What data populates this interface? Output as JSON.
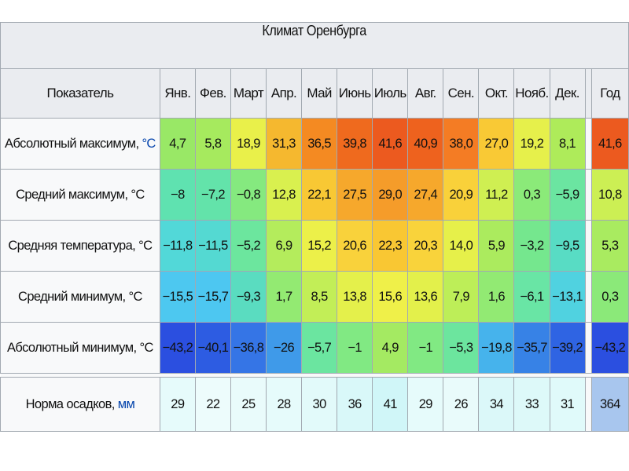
{
  "table": {
    "caption": "Климат Оренбурга",
    "header": {
      "label": "Показатель",
      "months": [
        "Янв.",
        "Фев.",
        "Март",
        "Апр.",
        "Май",
        "Июнь",
        "Июль",
        "Авг.",
        "Сен.",
        "Окт.",
        "Нояб.",
        "Дек."
      ],
      "year": "Год"
    },
    "rows": [
      {
        "label": "Абсолютный максимум, ",
        "unit": "°C",
        "unit_link": true,
        "values": [
          "4,7",
          "5,8",
          "18,9",
          "31,3",
          "36,5",
          "39,8",
          "41,6",
          "40,9",
          "38,0",
          "27,0",
          "19,2",
          "8,1"
        ],
        "year": "41,6",
        "colors": [
          "#99e866",
          "#a6ea5e",
          "#e9f04a",
          "#f5b82f",
          "#f48a22",
          "#ef6a1e",
          "#ec5a1f",
          "#ee621e",
          "#f47c24",
          "#f9c935",
          "#e6f04b",
          "#aeeb5a"
        ],
        "year_color": "#ec5a1f"
      },
      {
        "label": "Средний максимум, °C",
        "unit": "",
        "unit_link": false,
        "values": [
          "−8",
          "−7,2",
          "−0,8",
          "12,8",
          "22,1",
          "27,5",
          "29,0",
          "27,4",
          "20,9",
          "11,2",
          "0,3",
          "−5,9"
        ],
        "year": "10,8",
        "colors": [
          "#5fe2b0",
          "#63e3aa",
          "#85e97f",
          "#d9f04f",
          "#f8c834",
          "#f6a82c",
          "#f59c2a",
          "#f6a82c",
          "#f9d13a",
          "#cfef52",
          "#8bea79",
          "#6be5a1"
        ],
        "year_color": "#ccef54"
      },
      {
        "label": "Средняя температура, °C",
        "unit": "",
        "unit_link": false,
        "values": [
          "−11,8",
          "−11,5",
          "−5,2",
          "6,9",
          "15,2",
          "20,6",
          "22,3",
          "20,3",
          "14,0",
          "5,9",
          "−3,2",
          "−9,5"
        ],
        "year": "5,3",
        "colors": [
          "#52d8d8",
          "#54d9d2",
          "#6ce69e",
          "#b4ec5c",
          "#ecf049",
          "#f9d23b",
          "#f9c733",
          "#f9d33b",
          "#e6f04a",
          "#abeb5e",
          "#75e78e",
          "#58dcc4"
        ],
        "year_color": "#a9eb60"
      },
      {
        "label": "Средний минимум, °C",
        "unit": "",
        "unit_link": false,
        "values": [
          "−15,5",
          "−15,7",
          "−9,3",
          "1,7",
          "8,5",
          "13,8",
          "15,6",
          "13,6",
          "7,9",
          "1,6",
          "−6,1",
          "−13,1"
        ],
        "year": "0,3",
        "colors": [
          "#4dc8f0",
          "#4dc7f1",
          "#5adcc0",
          "#93ea72",
          "#c2ee57",
          "#e4f04b",
          "#eff049",
          "#e3f04b",
          "#bdee58",
          "#92ea73",
          "#69e5a5",
          "#50d2e0"
        ],
        "year_color": "#8be979"
      },
      {
        "label": "Абсолютный минимум, °C",
        "unit": "",
        "unit_link": false,
        "values": [
          "−43,2",
          "−40,1",
          "−36,8",
          "−26",
          "−5,7",
          "−1",
          "4,9",
          "−1",
          "−5,3",
          "−19,8",
          "−35,7",
          "−39,2"
        ],
        "year": "−43,2",
        "colors": [
          "#2b4fe0",
          "#2d5ce2",
          "#3575e6",
          "#3f9ae9",
          "#6be5a0",
          "#81e983",
          "#a4ea62",
          "#81e983",
          "#6ce59e",
          "#46b3ec",
          "#3782e6",
          "#2f64e3"
        ],
        "year_color": "#2b4fe0"
      }
    ],
    "precip": {
      "label": "Норма осадков, ",
      "unit": "мм",
      "values": [
        "29",
        "22",
        "25",
        "28",
        "30",
        "36",
        "41",
        "29",
        "26",
        "34",
        "33",
        "31"
      ],
      "year": "364",
      "colors": [
        "#e6fbfb",
        "#edfcfc",
        "#e9fbfb",
        "#e6fbfb",
        "#e2fafa",
        "#d9f8f9",
        "#d0f6f8",
        "#e6fbfb",
        "#e9fbfb",
        "#dbf8f9",
        "#ddf9f9",
        "#e0fafa"
      ],
      "year_color": "#a8c6ee"
    }
  }
}
